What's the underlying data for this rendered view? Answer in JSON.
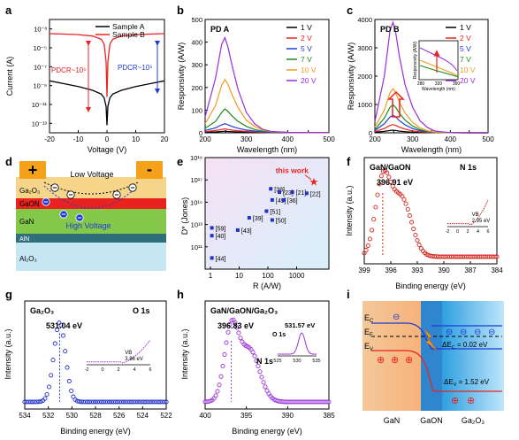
{
  "panel_letters": [
    "a",
    "b",
    "c",
    "d",
    "e",
    "f",
    "g",
    "h",
    "i"
  ],
  "colors": {
    "black": "#000000",
    "red": "#e8231f",
    "blue": "#1f3bd6",
    "green": "#1e8a1e",
    "orange": "#f39a1c",
    "purple": "#9b2fd8",
    "ga2o3_layer": "#f5d58a",
    "gaon_layer": "#e8231f",
    "gan_layer": "#84c84a",
    "aln_layer": "#2f6f7a",
    "al2o3_layer": "#c6e6f2",
    "peak_red": "#d8251f",
    "peak_blue": "#2231c8",
    "peak_purple": "#9a35d4"
  },
  "chart_data": [
    {
      "panel": "a",
      "type": "line",
      "xlabel": "Voltage (V)",
      "ylabel": "Current (A)",
      "xlim": [
        -20,
        20
      ],
      "xticks": [
        -20,
        -10,
        0,
        10,
        20
      ],
      "ylim_log10": [
        -14,
        -2
      ],
      "yticks": [
        "10⁻³",
        "10⁻⁵",
        "10⁻⁷",
        "10⁻⁹",
        "10⁻¹¹",
        "10⁻¹³"
      ],
      "ytick_exps": [
        -3,
        -5,
        -7,
        -9,
        -11,
        -13
      ],
      "series": [
        {
          "name": "Sample A",
          "color": "black",
          "v": [
            -20,
            -15,
            -10,
            -5,
            -2,
            -1,
            -0.3,
            0,
            0.3,
            1,
            2,
            5,
            10,
            15,
            20
          ],
          "log10_i": [
            -8.5,
            -8.8,
            -9.1,
            -9.5,
            -9.9,
            -10.3,
            -11.2,
            -13.2,
            -11.2,
            -10.3,
            -9.9,
            -9.5,
            -9.1,
            -8.8,
            -8.5
          ]
        },
        {
          "name": "Sample B",
          "color": "red",
          "v": [
            -20,
            -15,
            -10,
            -5,
            -2,
            -1,
            -0.3,
            0,
            0.3,
            1,
            2,
            5,
            10,
            15,
            20
          ],
          "log10_i": [
            -3.5,
            -3.55,
            -3.6,
            -3.75,
            -4.1,
            -4.6,
            -6.5,
            -10.2,
            -6.5,
            -4.6,
            -4.1,
            -3.75,
            -3.6,
            -3.55,
            -3.5
          ]
        }
      ],
      "annotations": [
        "PDCR~10⁶",
        "PDCR~10⁵"
      ]
    },
    {
      "panel": "b",
      "type": "line",
      "inner_label": "PD A",
      "xlabel": "Wavelength (nm)",
      "ylabel": "Responsivity (A/W)",
      "xlim": [
        200,
        500
      ],
      "xticks": [
        200,
        250,
        300,
        350,
        400,
        450,
        500
      ],
      "ylim": [
        0,
        500
      ],
      "yticks": [
        0,
        100,
        200,
        300,
        400,
        500
      ],
      "x": [
        200,
        225,
        240,
        248,
        255,
        265,
        280,
        300,
        320,
        340,
        360,
        400,
        450,
        500
      ],
      "series": [
        {
          "name": "1 V",
          "color": "black",
          "values": [
            2,
            4,
            6,
            7,
            6,
            5,
            4,
            3,
            2,
            1,
            1,
            1,
            1,
            1
          ]
        },
        {
          "name": "2 V",
          "color": "red",
          "values": [
            5,
            10,
            15,
            17,
            15,
            12,
            9,
            6,
            4,
            2,
            1,
            1,
            1,
            1
          ]
        },
        {
          "name": "5 V",
          "color": "blue",
          "values": [
            10,
            22,
            35,
            40,
            36,
            28,
            20,
            12,
            8,
            4,
            2,
            1,
            1,
            1
          ]
        },
        {
          "name": "7 V",
          "color": "green",
          "values": [
            20,
            50,
            90,
            105,
            95,
            75,
            50,
            28,
            15,
            7,
            3,
            1,
            1,
            1
          ]
        },
        {
          "name": "10 V",
          "color": "orange",
          "values": [
            40,
            120,
            210,
            235,
            215,
            170,
            110,
            55,
            28,
            12,
            5,
            2,
            1,
            1
          ]
        },
        {
          "name": "20 V",
          "color": "purple",
          "values": [
            70,
            240,
            390,
            420,
            380,
            300,
            190,
            90,
            40,
            15,
            6,
            2,
            1,
            1
          ]
        }
      ]
    },
    {
      "panel": "c",
      "type": "line",
      "inner_label": "PD B",
      "xlabel": "Wavelength (nm)",
      "ylabel": "Responsivity (A/W)",
      "xlim": [
        200,
        500
      ],
      "xticks": [
        200,
        250,
        300,
        350,
        400,
        450,
        500
      ],
      "ylim": [
        0,
        4000
      ],
      "yticks": [
        0,
        1000,
        2000,
        3000,
        4000
      ],
      "x": [
        200,
        225,
        240,
        248,
        255,
        265,
        280,
        300,
        320,
        340,
        360,
        400,
        450,
        500
      ],
      "series": [
        {
          "name": "1 V",
          "color": "black",
          "values": [
            20,
            50,
            80,
            90,
            80,
            60,
            40,
            25,
            15,
            8,
            4,
            2,
            1,
            1
          ]
        },
        {
          "name": "2 V",
          "color": "red",
          "values": [
            40,
            150,
            260,
            290,
            260,
            200,
            130,
            70,
            35,
            15,
            6,
            2,
            1,
            1
          ]
        },
        {
          "name": "5 V",
          "color": "blue",
          "values": [
            80,
            320,
            560,
            620,
            560,
            430,
            280,
            150,
            70,
            30,
            10,
            3,
            1,
            1
          ]
        },
        {
          "name": "7 V",
          "color": "green",
          "values": [
            120,
            520,
            900,
            990,
            900,
            690,
            450,
            240,
            110,
            45,
            15,
            4,
            1,
            1
          ]
        },
        {
          "name": "10 V",
          "color": "orange",
          "values": [
            200,
            800,
            1420,
            1560,
            1420,
            1080,
            700,
            370,
            170,
            70,
            25,
            6,
            1,
            1
          ]
        },
        {
          "name": "20 V",
          "color": "purple",
          "values": [
            400,
            2000,
            3600,
            3900,
            3550,
            2700,
            1700,
            900,
            420,
            180,
            60,
            10,
            2,
            1
          ]
        }
      ],
      "inset": {
        "ylabel": "Responsivity (A/W)",
        "xlabel": "Wavelength (nm)",
        "xlim": [
          280,
          360
        ],
        "xticks": [
          280,
          320,
          360
        ]
      }
    },
    {
      "panel": "e",
      "type": "scatter",
      "xlabel": "R (A/W)",
      "ylabel": "D* (Jones)",
      "xlim_log10": [
        0,
        4
      ],
      "xticks": [
        "1",
        "10",
        "100",
        "1000"
      ],
      "xtick_exps": [
        0,
        1,
        2,
        3
      ],
      "ylim_log10": [
        9,
        19
      ],
      "yticks": [
        "10¹¹",
        "10¹³",
        "10¹⁵",
        "10¹⁷",
        "10¹⁹"
      ],
      "ytick_exps": [
        11,
        13,
        15,
        17,
        19
      ],
      "points": [
        {
          "label": "[44]",
          "log10_r": 0.05,
          "log10_d": 10.0
        },
        {
          "label": "[40]",
          "log10_r": 0.05,
          "log10_d": 12.0
        },
        {
          "label": "[59]",
          "log10_r": 0.05,
          "log10_d": 12.7
        },
        {
          "label": "[43]",
          "log10_r": 0.95,
          "log10_d": 12.5
        },
        {
          "label": "[39]",
          "log10_r": 1.35,
          "log10_d": 13.6
        },
        {
          "label": "[51]",
          "log10_r": 1.95,
          "log10_d": 14.2
        },
        {
          "label": "[50]",
          "log10_r": 2.15,
          "log10_d": 13.4
        },
        {
          "label": "[49]",
          "log10_r": 2.15,
          "log10_d": 15.2
        },
        {
          "label": "[38]",
          "log10_r": 2.1,
          "log10_d": 16.2
        },
        {
          "label": "[23]",
          "log10_r": 2.4,
          "log10_d": 15.9
        },
        {
          "label": "[36]",
          "log10_r": 2.55,
          "log10_d": 15.2
        },
        {
          "label": "[21]",
          "log10_r": 2.85,
          "log10_d": 15.9
        },
        {
          "label": "[22]",
          "log10_r": 3.35,
          "log10_d": 15.8
        }
      ],
      "highlight": {
        "label": "this work",
        "log10_r": 3.6,
        "log10_d": 16.8
      }
    },
    {
      "panel": "f",
      "type": "scatter",
      "inner_label": "GaN/GaON",
      "core_level": "N 1s",
      "peak_label": "396.91 eV",
      "xlabel": "Binding energy (eV)",
      "ylabel": "Intensity (a.u.)",
      "xlim": [
        399,
        384
      ],
      "xticks": [
        399,
        396,
        393,
        390,
        387,
        384
      ],
      "peaks": [
        {
          "center": 396.91,
          "height": 1.0,
          "width": 1.2
        },
        {
          "center": 394.8,
          "height": 0.78,
          "width": 1.6
        }
      ],
      "inset": {
        "label": "VB",
        "value": "2.95 eV",
        "xticks": [
          -2,
          0,
          2,
          4,
          6
        ]
      }
    },
    {
      "panel": "g",
      "type": "scatter",
      "inner_label": "Ga₂O₃",
      "core_level": "O 1s",
      "peak_label": "531.04 eV",
      "xlabel": "Binding energy (eV)",
      "ylabel": "Intensity (a.u.)",
      "xlim": [
        534,
        522
      ],
      "xticks": [
        534,
        532,
        530,
        528,
        526,
        524,
        522
      ],
      "peaks": [
        {
          "center": 531.04,
          "height": 1.0,
          "width": 0.7
        }
      ],
      "inset": {
        "label": "VB",
        "value": "3.86 eV",
        "xticks": [
          -2,
          0,
          2,
          4,
          6
        ]
      }
    },
    {
      "panel": "h",
      "type": "scatter",
      "inner_label": "GaN/GaON/Ga₂O₃",
      "core_level": "N 1s",
      "peak_label": "396.83 eV",
      "xlabel": "Binding energy (eV)",
      "ylabel": "Intensity (a.u.)",
      "xlim": [
        400,
        385
      ],
      "xticks": [
        400,
        395,
        390,
        385
      ],
      "peaks": [
        {
          "center": 396.83,
          "height": 1.0,
          "width": 1.2
        },
        {
          "center": 394.6,
          "height": 0.72,
          "width": 1.7
        }
      ],
      "inset": {
        "label": "O 1s",
        "value": "531.57 eV",
        "xticks": [
          525,
          530,
          535
        ]
      }
    }
  ],
  "diagram_d": {
    "plus": "+",
    "minus": "-",
    "low_voltage": "Low Voltage",
    "high_voltage": "High Voltage",
    "layers": [
      "Ga₂O₃",
      "GaON",
      "GaN",
      "AlN",
      "Al₂O₃"
    ]
  },
  "diagram_i": {
    "ec": "E",
    "ec_sub": "C",
    "ef": "E",
    "ef_sub": "F",
    "ev": "E",
    "ev_sub": "V",
    "delta_ec": "ΔE",
    "delta_ec_sub": "C",
    "delta_ec_val": " = 0.02 eV",
    "delta_ev": "ΔE",
    "delta_ev_sub": "V",
    "delta_ev_val": " = 1.52 eV",
    "regions": [
      "GaN",
      "GaON",
      "Ga₂O₃"
    ],
    "electron": "⊖",
    "hole": "⊕"
  }
}
